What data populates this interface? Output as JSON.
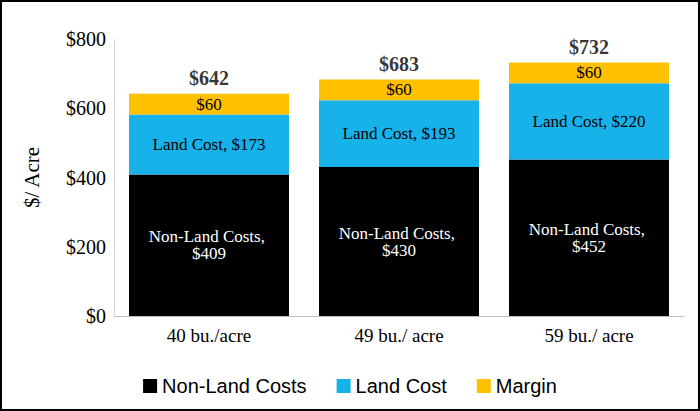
{
  "chart_data": {
    "type": "bar",
    "stacked": true,
    "grid": false,
    "legend": "bottom",
    "data_labels": true,
    "ylabel": "$/ Acre",
    "categories": [
      "40 bu./acre",
      "49 bu./ acre",
      "59 bu./ acre"
    ],
    "ylim": [
      0,
      800
    ],
    "yticks": [
      {
        "value": 0,
        "label": "$0"
      },
      {
        "value": 200,
        "label": "$200"
      },
      {
        "value": 400,
        "label": "$400"
      },
      {
        "value": 600,
        "label": "$600"
      },
      {
        "value": 800,
        "label": "$800"
      }
    ],
    "series": [
      {
        "name": "Non-Land Costs",
        "color": "#000000",
        "values": [
          409,
          430,
          452
        ],
        "value_labels": [
          "Non-Land Costs, $409",
          "Non-Land Costs, $430",
          "Non-Land Costs, $452"
        ]
      },
      {
        "name": "Land Cost",
        "color": "#17b2ea",
        "values": [
          173,
          193,
          220
        ],
        "value_labels": [
          "Land Cost, $173",
          "Land Cost, $193",
          "Land Cost, $220"
        ]
      },
      {
        "name": "Margin",
        "color": "#ffc000",
        "values": [
          60,
          60,
          60
        ],
        "value_labels": [
          "$60",
          "$60",
          "$60"
        ]
      }
    ],
    "totals": [
      642,
      683,
      732
    ],
    "total_labels": [
      "$642",
      "$683",
      "$732"
    ]
  }
}
